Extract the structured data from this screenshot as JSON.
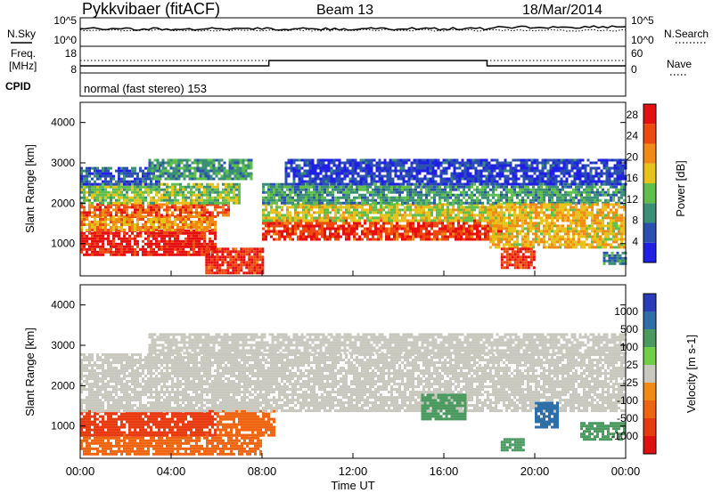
{
  "header": {
    "station": "Pykkvibaer (fitACF)",
    "beam": "Beam 13",
    "date": "18/Mar/2014"
  },
  "panels": {
    "nsky": {
      "left_label": "N.Sky",
      "right_label": "N.Search",
      "ticks_left": [
        "10^5",
        "10^0"
      ],
      "ticks_right": [
        "10^5",
        "10^0"
      ]
    },
    "freq": {
      "left_label_1": "Freq.",
      "left_label_2": "[MHz]",
      "right_label": "Nave",
      "ticks_left": [
        "18",
        "8"
      ],
      "ticks_right": [
        "60",
        "0"
      ]
    },
    "cpid": {
      "label": "CPID",
      "text": "normal (fast stereo) 153"
    }
  },
  "colors": {
    "power": [
      "#1f1fe6",
      "#2c50b0",
      "#3a8f76",
      "#5fbf4a",
      "#e6c21a",
      "#f08a14",
      "#ee4a10",
      "#e60f0f"
    ],
    "velocity": [
      "#2a3db8",
      "#2f6fa8",
      "#4a9a60",
      "#6fd048",
      "#c8c8be",
      "#f08a14",
      "#ee6410",
      "#e83a10",
      "#e01010"
    ]
  },
  "chart_data": [
    {
      "type": "heatmap",
      "name": "power",
      "xlabel": "Time UT",
      "ylabel": "Slant Range [km]",
      "x_tick_labels": [
        "00:00",
        "04:00",
        "08:00",
        "12:00",
        "16:00",
        "20:00",
        "00:00"
      ],
      "xlim": [
        0,
        24
      ],
      "ylim": [
        200,
        4500
      ],
      "y_ticks": [
        1000,
        2000,
        3000,
        4000
      ],
      "colorbar": {
        "label": "Power [dB]",
        "ticks": [
          4,
          8,
          12,
          16,
          20,
          24,
          28
        ],
        "range": [
          0,
          30
        ]
      },
      "regions": [
        {
          "t0": 0.0,
          "t1": 6.0,
          "r0": 700,
          "r1": 1350,
          "v": 28
        },
        {
          "t0": 0.0,
          "t1": 6.0,
          "r0": 1350,
          "r1": 1700,
          "v": 20
        },
        {
          "t0": 0.0,
          "t1": 6.5,
          "r0": 1700,
          "r1": 2000,
          "v": 24
        },
        {
          "t0": 0.0,
          "t1": 7.0,
          "r0": 2000,
          "r1": 2500,
          "v": 14
        },
        {
          "t0": 0.0,
          "t1": 3.5,
          "r0": 2500,
          "r1": 2900,
          "v": 6
        },
        {
          "t0": 3.0,
          "t1": 7.5,
          "r0": 2600,
          "r1": 3100,
          "v": 10
        },
        {
          "t0": 5.5,
          "t1": 8.0,
          "r0": 300,
          "r1": 900,
          "v": 26
        },
        {
          "t0": 8.0,
          "t1": 18.5,
          "r0": 1100,
          "r1": 1600,
          "v": 26
        },
        {
          "t0": 8.0,
          "t1": 18.5,
          "r0": 1600,
          "r1": 2000,
          "v": 16
        },
        {
          "t0": 8.0,
          "t1": 24.0,
          "r0": 2000,
          "r1": 2500,
          "v": 10
        },
        {
          "t0": 9.0,
          "t1": 24.0,
          "r0": 2500,
          "r1": 3100,
          "v": 4
        },
        {
          "t0": 18.0,
          "t1": 24.0,
          "r0": 900,
          "r1": 2000,
          "v": 18
        },
        {
          "t0": 18.5,
          "t1": 20.0,
          "r0": 400,
          "r1": 900,
          "v": 26
        },
        {
          "t0": 23.0,
          "t1": 24.0,
          "r0": 500,
          "r1": 800,
          "v": 8
        }
      ]
    },
    {
      "type": "heatmap",
      "name": "velocity",
      "xlabel": "Time UT",
      "ylabel": "Slant Range [km]",
      "x_tick_labels": [
        "00:00",
        "04:00",
        "08:00",
        "12:00",
        "16:00",
        "20:00",
        "00:00"
      ],
      "xlim": [
        0,
        24
      ],
      "ylim": [
        200,
        4500
      ],
      "y_ticks": [
        1000,
        2000,
        3000,
        4000
      ],
      "colorbar": {
        "label": "Velocity [m s-1]",
        "ticks": [
          "1000",
          "500",
          "100",
          "25",
          "-25",
          "-100",
          "-500",
          "-1000"
        ]
      },
      "regions": [
        {
          "t0": 0.0,
          "t1": 8.0,
          "r0": 300,
          "r1": 800,
          "v": -300
        },
        {
          "t0": 0.0,
          "t1": 6.0,
          "r0": 800,
          "r1": 1400,
          "v": -600
        },
        {
          "t0": 6.0,
          "t1": 8.5,
          "r0": 800,
          "r1": 1400,
          "v": -200
        },
        {
          "t0": 0.0,
          "t1": 24.0,
          "r0": 1400,
          "r1": 2800,
          "v": 0
        },
        {
          "t0": 3.0,
          "t1": 24.0,
          "r0": 2800,
          "r1": 3300,
          "v": 0
        },
        {
          "t0": 15.0,
          "t1": 17.0,
          "r0": 1200,
          "r1": 1800,
          "v": 300
        },
        {
          "t0": 20.0,
          "t1": 21.0,
          "r0": 1000,
          "r1": 1600,
          "v": 800
        },
        {
          "t0": 22.0,
          "t1": 24.0,
          "r0": 700,
          "r1": 1100,
          "v": 300
        },
        {
          "t0": 18.5,
          "t1": 19.5,
          "r0": 400,
          "r1": 700,
          "v": 200
        }
      ]
    }
  ]
}
